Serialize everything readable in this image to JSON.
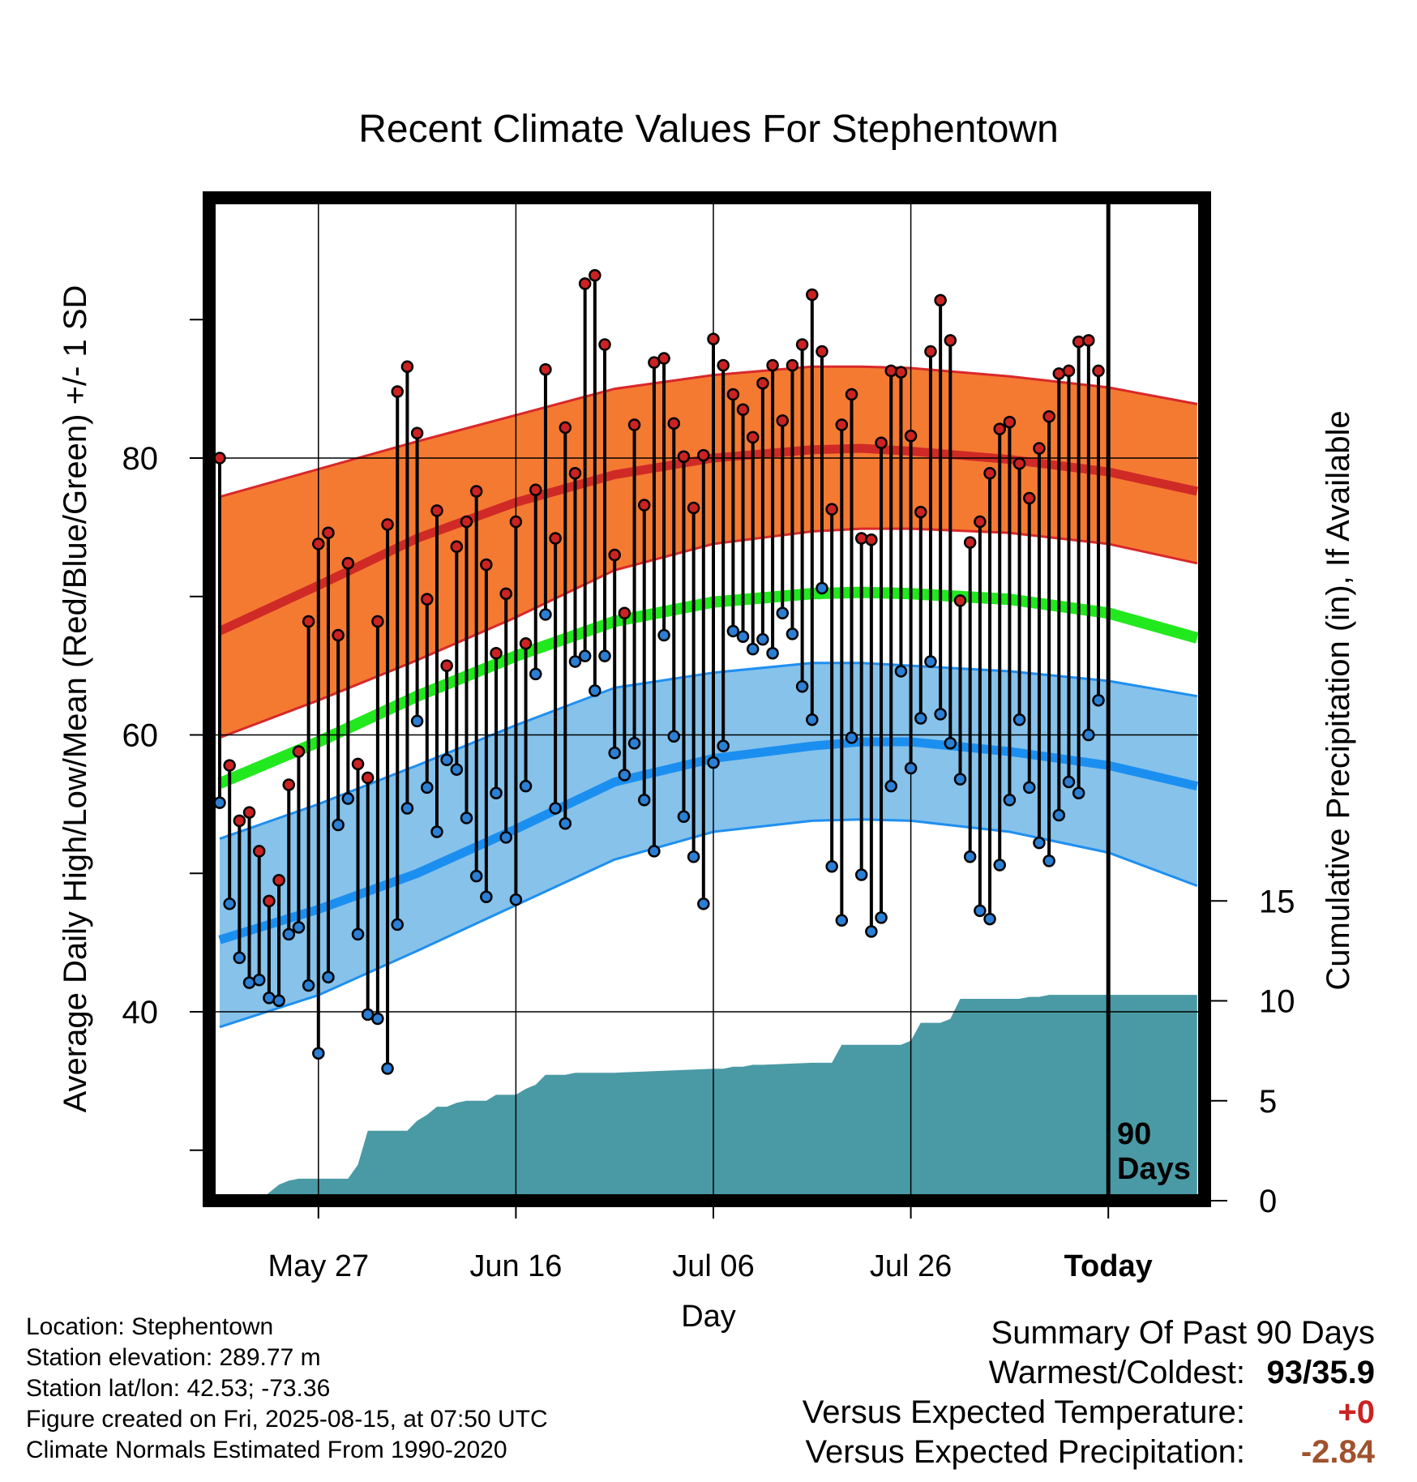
{
  "chart_data": {
    "type": "line",
    "title": "Recent Climate Values For Stephentown",
    "xlabel": "Day",
    "ylabel_left": "Average Daily High/Low/Mean (Red/Blue/Green) +/- 1 SD",
    "ylabel_right": "Cumulative Precipitation (in), If Available",
    "x_tick_labels": [
      "May 27",
      "Jun 16",
      "Jul 06",
      "Jul 26",
      "Today"
    ],
    "x_tick_days": [
      10,
      30,
      50,
      70,
      90
    ],
    "y_left_ticks": [
      "40",
      "60",
      "80"
    ],
    "y_left_range": [
      26.5,
      98
    ],
    "y_right_ticks": [
      "0",
      "5",
      "10",
      "15"
    ],
    "y_right_range": [
      0,
      50.5
    ],
    "today_annotation": "90\nDays",
    "normals": {
      "days": [
        0,
        10,
        20,
        30,
        40,
        50,
        60,
        65,
        70,
        80,
        90,
        99
      ],
      "high_mean": [
        67.5,
        70.8,
        74.2,
        76.8,
        78.8,
        80.0,
        80.6,
        80.7,
        80.5,
        79.9,
        79.0,
        77.6
      ],
      "high_upper": [
        77.2,
        79.2,
        81.2,
        83.1,
        85.0,
        86.0,
        86.6,
        86.6,
        86.5,
        85.9,
        85.1,
        83.9
      ],
      "high_lower": [
        59.8,
        62.5,
        65.4,
        68.5,
        71.9,
        73.8,
        74.7,
        74.9,
        74.9,
        74.6,
        73.8,
        72.4
      ],
      "mean": [
        56.5,
        59.5,
        62.8,
        65.7,
        68.2,
        69.6,
        70.2,
        70.3,
        70.2,
        69.8,
        68.8,
        67.0
      ],
      "low_mean": [
        45.2,
        47.4,
        50.0,
        53.2,
        56.6,
        58.3,
        59.2,
        59.5,
        59.5,
        58.8,
        57.8,
        56.3
      ],
      "low_upper": [
        52.5,
        55.0,
        57.8,
        60.7,
        63.4,
        64.5,
        65.2,
        65.2,
        65.0,
        64.6,
        63.9,
        62.8
      ],
      "low_lower": [
        38.9,
        41.2,
        44.4,
        47.7,
        51.0,
        53.0,
        53.8,
        53.9,
        53.8,
        53.0,
        51.5,
        49.1
      ]
    },
    "daily": {
      "high": [
        80.0,
        57.8,
        53.8,
        54.4,
        51.6,
        48.0,
        49.5,
        56.4,
        58.8,
        68.2,
        73.8,
        74.6,
        67.2,
        72.4,
        57.9,
        56.9,
        68.2,
        75.2,
        84.8,
        86.6,
        81.8,
        69.8,
        76.2,
        65.0,
        73.6,
        75.4,
        77.6,
        72.3,
        65.9,
        70.2,
        75.4,
        66.6,
        77.7,
        86.4,
        74.2,
        82.2,
        78.9,
        92.6,
        93.2,
        88.2,
        73.0,
        68.8,
        82.4,
        76.6,
        86.9,
        87.2,
        82.5,
        80.1,
        76.4,
        80.2,
        88.6,
        86.7,
        84.6,
        83.5,
        81.5,
        85.4,
        86.7,
        82.7,
        86.7,
        88.2,
        91.8,
        87.7,
        76.3,
        82.4,
        84.6,
        74.2,
        74.1,
        81.1,
        86.3,
        86.2,
        81.6,
        76.1,
        87.7,
        91.4,
        88.5,
        69.7,
        73.9,
        75.4,
        78.9,
        82.1,
        82.6,
        79.6,
        77.1,
        80.7,
        83.0,
        86.1,
        86.3,
        88.4,
        88.5,
        86.3
      ],
      "low": [
        55.1,
        47.8,
        43.9,
        42.1,
        42.3,
        41.0,
        40.8,
        45.6,
        46.1,
        41.9,
        37.0,
        42.5,
        53.5,
        55.4,
        45.6,
        39.8,
        39.5,
        35.9,
        46.3,
        54.7,
        61.0,
        56.2,
        53.0,
        58.2,
        57.5,
        54.0,
        49.8,
        48.3,
        55.8,
        52.6,
        48.1,
        56.3,
        64.4,
        68.7,
        54.7,
        53.6,
        65.3,
        65.7,
        63.2,
        65.7,
        58.7,
        57.1,
        59.4,
        55.3,
        51.6,
        67.2,
        59.9,
        54.1,
        51.2,
        47.8,
        58.0,
        59.2,
        67.5,
        67.1,
        66.2,
        66.9,
        65.9,
        68.8,
        67.3,
        63.5,
        61.1,
        70.6,
        50.5,
        46.6,
        59.8,
        49.9,
        45.8,
        46.8,
        56.3,
        64.6,
        57.6,
        61.2,
        65.3,
        61.5,
        59.4,
        56.8,
        51.2,
        47.3,
        46.7,
        50.6,
        55.3,
        61.1,
        56.2,
        52.2,
        50.9,
        54.2,
        56.6,
        55.8,
        60.0,
        62.5
      ]
    },
    "cum_precip": {
      "days": [
        0,
        1,
        2,
        3,
        4,
        5,
        6,
        7,
        8,
        9,
        10,
        11,
        12,
        13,
        14,
        15,
        16,
        17,
        18,
        19,
        20,
        21,
        22,
        23,
        24,
        25,
        26,
        27,
        28,
        29,
        30,
        31,
        32,
        33,
        34,
        35,
        36,
        37,
        38,
        39,
        40,
        45,
        50,
        51,
        52,
        53,
        54,
        55,
        60,
        62,
        63,
        64,
        65,
        66,
        67,
        68,
        69,
        70,
        71,
        72,
        73,
        74,
        75,
        76,
        77,
        78,
        79,
        80,
        81,
        82,
        83,
        84,
        85,
        86,
        87,
        88,
        89,
        90,
        99
      ],
      "values": [
        0.0,
        0.0,
        0.0,
        0.0,
        0.0,
        0.4,
        0.8,
        1.0,
        1.1,
        1.1,
        1.1,
        1.1,
        1.1,
        1.1,
        1.8,
        3.5,
        3.5,
        3.5,
        3.5,
        3.5,
        4.0,
        4.3,
        4.7,
        4.7,
        4.9,
        5.0,
        5.0,
        5.0,
        5.3,
        5.3,
        5.3,
        5.6,
        5.8,
        6.3,
        6.3,
        6.3,
        6.4,
        6.4,
        6.4,
        6.4,
        6.4,
        6.5,
        6.6,
        6.6,
        6.7,
        6.7,
        6.8,
        6.8,
        6.9,
        6.9,
        7.8,
        7.8,
        7.8,
        7.8,
        7.8,
        7.8,
        7.8,
        8.0,
        8.9,
        8.9,
        8.9,
        9.1,
        10.1,
        10.1,
        10.1,
        10.1,
        10.1,
        10.1,
        10.1,
        10.2,
        10.2,
        10.3,
        10.3,
        10.3,
        10.3,
        10.3,
        10.3,
        10.3,
        10.3
      ]
    },
    "colors": {
      "high_band": "#f47a32",
      "high_band_edge": "#d9282a",
      "high_line": "#d02a26",
      "mean_line": "#22e81e",
      "low_band": "#86c2ea",
      "low_band_edge": "#1f8ff0",
      "low_line": "#1b8ff0",
      "precip": "#4a9aa5",
      "high_dot": "#cc2222",
      "low_dot": "#2b7fd4"
    }
  },
  "info": {
    "location": "Location: Stephentown",
    "elevation": "Station elevation: 289.77 m",
    "latlon": "Station lat/lon: 42.53; -73.36",
    "created": "Figure created on Fri, 2025-08-15, at 07:50 UTC",
    "normals": "Climate Normals Estimated From 1990-2020"
  },
  "summary": {
    "heading": "Summary Of Past 90 Days",
    "warmest_coldest_label": "Warmest/Coldest:",
    "warmest_coldest_value": "93/35.9",
    "vs_temp_label": "Versus Expected Temperature:",
    "vs_temp_value": "+0",
    "vs_temp_color": "#cc2222",
    "vs_precip_label": "Versus Expected Precipitation:",
    "vs_precip_value": "-2.84",
    "vs_precip_color": "#a0522d"
  }
}
